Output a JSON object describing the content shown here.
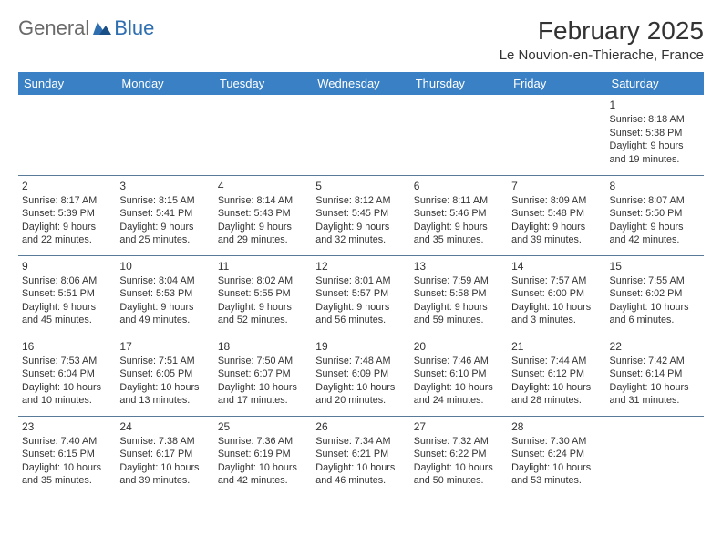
{
  "logo": {
    "general": "General",
    "blue": "Blue"
  },
  "title": "February 2025",
  "location": "Le Nouvion-en-Thierache, France",
  "header_bg": "#3a80c4",
  "header_fg": "#ffffff",
  "rule_color": "#5a7a9a",
  "text_color": "#333333",
  "daynames": [
    "Sunday",
    "Monday",
    "Tuesday",
    "Wednesday",
    "Thursday",
    "Friday",
    "Saturday"
  ],
  "weeks": [
    [
      null,
      null,
      null,
      null,
      null,
      null,
      {
        "n": "1",
        "sr": "Sunrise: 8:18 AM",
        "ss": "Sunset: 5:38 PM",
        "dl1": "Daylight: 9 hours",
        "dl2": "and 19 minutes."
      }
    ],
    [
      {
        "n": "2",
        "sr": "Sunrise: 8:17 AM",
        "ss": "Sunset: 5:39 PM",
        "dl1": "Daylight: 9 hours",
        "dl2": "and 22 minutes."
      },
      {
        "n": "3",
        "sr": "Sunrise: 8:15 AM",
        "ss": "Sunset: 5:41 PM",
        "dl1": "Daylight: 9 hours",
        "dl2": "and 25 minutes."
      },
      {
        "n": "4",
        "sr": "Sunrise: 8:14 AM",
        "ss": "Sunset: 5:43 PM",
        "dl1": "Daylight: 9 hours",
        "dl2": "and 29 minutes."
      },
      {
        "n": "5",
        "sr": "Sunrise: 8:12 AM",
        "ss": "Sunset: 5:45 PM",
        "dl1": "Daylight: 9 hours",
        "dl2": "and 32 minutes."
      },
      {
        "n": "6",
        "sr": "Sunrise: 8:11 AM",
        "ss": "Sunset: 5:46 PM",
        "dl1": "Daylight: 9 hours",
        "dl2": "and 35 minutes."
      },
      {
        "n": "7",
        "sr": "Sunrise: 8:09 AM",
        "ss": "Sunset: 5:48 PM",
        "dl1": "Daylight: 9 hours",
        "dl2": "and 39 minutes."
      },
      {
        "n": "8",
        "sr": "Sunrise: 8:07 AM",
        "ss": "Sunset: 5:50 PM",
        "dl1": "Daylight: 9 hours",
        "dl2": "and 42 minutes."
      }
    ],
    [
      {
        "n": "9",
        "sr": "Sunrise: 8:06 AM",
        "ss": "Sunset: 5:51 PM",
        "dl1": "Daylight: 9 hours",
        "dl2": "and 45 minutes."
      },
      {
        "n": "10",
        "sr": "Sunrise: 8:04 AM",
        "ss": "Sunset: 5:53 PM",
        "dl1": "Daylight: 9 hours",
        "dl2": "and 49 minutes."
      },
      {
        "n": "11",
        "sr": "Sunrise: 8:02 AM",
        "ss": "Sunset: 5:55 PM",
        "dl1": "Daylight: 9 hours",
        "dl2": "and 52 minutes."
      },
      {
        "n": "12",
        "sr": "Sunrise: 8:01 AM",
        "ss": "Sunset: 5:57 PM",
        "dl1": "Daylight: 9 hours",
        "dl2": "and 56 minutes."
      },
      {
        "n": "13",
        "sr": "Sunrise: 7:59 AM",
        "ss": "Sunset: 5:58 PM",
        "dl1": "Daylight: 9 hours",
        "dl2": "and 59 minutes."
      },
      {
        "n": "14",
        "sr": "Sunrise: 7:57 AM",
        "ss": "Sunset: 6:00 PM",
        "dl1": "Daylight: 10 hours",
        "dl2": "and 3 minutes."
      },
      {
        "n": "15",
        "sr": "Sunrise: 7:55 AM",
        "ss": "Sunset: 6:02 PM",
        "dl1": "Daylight: 10 hours",
        "dl2": "and 6 minutes."
      }
    ],
    [
      {
        "n": "16",
        "sr": "Sunrise: 7:53 AM",
        "ss": "Sunset: 6:04 PM",
        "dl1": "Daylight: 10 hours",
        "dl2": "and 10 minutes."
      },
      {
        "n": "17",
        "sr": "Sunrise: 7:51 AM",
        "ss": "Sunset: 6:05 PM",
        "dl1": "Daylight: 10 hours",
        "dl2": "and 13 minutes."
      },
      {
        "n": "18",
        "sr": "Sunrise: 7:50 AM",
        "ss": "Sunset: 6:07 PM",
        "dl1": "Daylight: 10 hours",
        "dl2": "and 17 minutes."
      },
      {
        "n": "19",
        "sr": "Sunrise: 7:48 AM",
        "ss": "Sunset: 6:09 PM",
        "dl1": "Daylight: 10 hours",
        "dl2": "and 20 minutes."
      },
      {
        "n": "20",
        "sr": "Sunrise: 7:46 AM",
        "ss": "Sunset: 6:10 PM",
        "dl1": "Daylight: 10 hours",
        "dl2": "and 24 minutes."
      },
      {
        "n": "21",
        "sr": "Sunrise: 7:44 AM",
        "ss": "Sunset: 6:12 PM",
        "dl1": "Daylight: 10 hours",
        "dl2": "and 28 minutes."
      },
      {
        "n": "22",
        "sr": "Sunrise: 7:42 AM",
        "ss": "Sunset: 6:14 PM",
        "dl1": "Daylight: 10 hours",
        "dl2": "and 31 minutes."
      }
    ],
    [
      {
        "n": "23",
        "sr": "Sunrise: 7:40 AM",
        "ss": "Sunset: 6:15 PM",
        "dl1": "Daylight: 10 hours",
        "dl2": "and 35 minutes."
      },
      {
        "n": "24",
        "sr": "Sunrise: 7:38 AM",
        "ss": "Sunset: 6:17 PM",
        "dl1": "Daylight: 10 hours",
        "dl2": "and 39 minutes."
      },
      {
        "n": "25",
        "sr": "Sunrise: 7:36 AM",
        "ss": "Sunset: 6:19 PM",
        "dl1": "Daylight: 10 hours",
        "dl2": "and 42 minutes."
      },
      {
        "n": "26",
        "sr": "Sunrise: 7:34 AM",
        "ss": "Sunset: 6:21 PM",
        "dl1": "Daylight: 10 hours",
        "dl2": "and 46 minutes."
      },
      {
        "n": "27",
        "sr": "Sunrise: 7:32 AM",
        "ss": "Sunset: 6:22 PM",
        "dl1": "Daylight: 10 hours",
        "dl2": "and 50 minutes."
      },
      {
        "n": "28",
        "sr": "Sunrise: 7:30 AM",
        "ss": "Sunset: 6:24 PM",
        "dl1": "Daylight: 10 hours",
        "dl2": "and 53 minutes."
      },
      null
    ]
  ]
}
